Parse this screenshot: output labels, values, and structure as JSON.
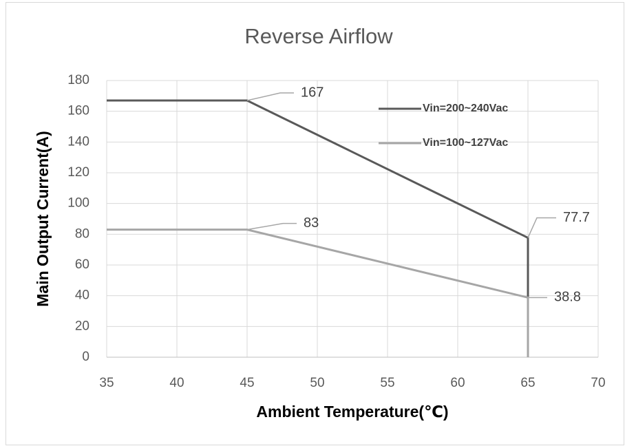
{
  "chart_data": {
    "type": "line",
    "title": "Reverse Airflow",
    "x_label": "Ambient Temperature(℃)",
    "y_label": "Main Output Current(A)",
    "x": [
      35,
      45,
      65,
      65
    ],
    "series": [
      {
        "name": "Vin=200~240Vac",
        "color": "#595959",
        "values": [
          167,
          167,
          77.7,
          0
        ],
        "data_labels": [
          1,
          2
        ]
      },
      {
        "name": "Vin=100~127Vac",
        "color": "#a6a6a6",
        "values": [
          83,
          83,
          38.8,
          0
        ],
        "data_labels": [
          1,
          2
        ]
      }
    ],
    "xlim": [
      35,
      70
    ],
    "xticks": [
      35,
      40,
      45,
      50,
      55,
      60,
      65,
      70
    ],
    "ylim": [
      0,
      180
    ],
    "yticks": [
      0,
      20,
      40,
      60,
      80,
      100,
      120,
      140,
      160,
      180
    ],
    "grid": true,
    "legend": "upper right"
  }
}
